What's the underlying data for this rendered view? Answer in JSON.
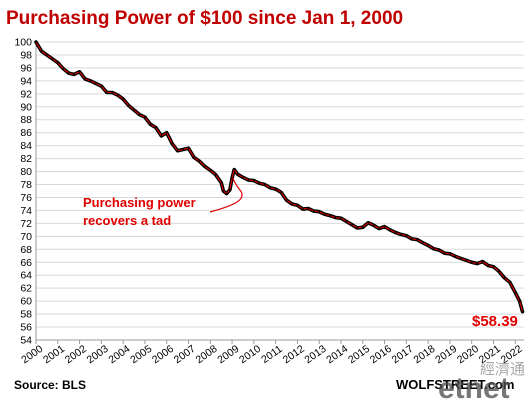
{
  "chart_data": {
    "type": "line",
    "title": "Purchasing  Power of $100 since Jan 1, 2000",
    "xlabel": "",
    "ylabel": "",
    "ylim": [
      54,
      100
    ],
    "y_ticks": [
      54,
      56,
      58,
      60,
      62,
      64,
      66,
      68,
      70,
      72,
      74,
      76,
      78,
      80,
      82,
      84,
      86,
      88,
      90,
      92,
      94,
      96,
      98,
      100
    ],
    "xlim": [
      2000,
      2022.4
    ],
    "x_ticks": [
      "2000",
      "2001",
      "2002",
      "2003",
      "2004",
      "2005",
      "2006",
      "2007",
      "2008",
      "2009",
      "2010",
      "2011",
      "2012",
      "2013",
      "2014",
      "2015",
      "2016",
      "2017",
      "2018",
      "2019",
      "2020",
      "2021",
      "2022"
    ],
    "grid": true,
    "series": [
      {
        "color": "#000000",
        "highlight_color": "#e00000",
        "x": [
          2000.0,
          2000.25,
          2000.5,
          2000.75,
          2001.0,
          2001.25,
          2001.5,
          2001.75,
          2002.0,
          2002.25,
          2002.5,
          2002.75,
          2003.0,
          2003.25,
          2003.5,
          2003.75,
          2004.0,
          2004.25,
          2004.5,
          2004.75,
          2005.0,
          2005.25,
          2005.5,
          2005.75,
          2006.0,
          2006.25,
          2006.5,
          2006.75,
          2007.0,
          2007.25,
          2007.5,
          2007.75,
          2008.0,
          2008.25,
          2008.5,
          2008.6,
          2008.75,
          2008.9,
          2009.0,
          2009.1,
          2009.25,
          2009.5,
          2009.75,
          2010.0,
          2010.25,
          2010.5,
          2010.75,
          2011.0,
          2011.25,
          2011.5,
          2011.75,
          2012.0,
          2012.25,
          2012.5,
          2012.75,
          2013.0,
          2013.25,
          2013.5,
          2013.75,
          2014.0,
          2014.25,
          2014.5,
          2014.75,
          2015.0,
          2015.25,
          2015.5,
          2015.75,
          2016.0,
          2016.25,
          2016.5,
          2016.75,
          2017.0,
          2017.25,
          2017.5,
          2017.75,
          2018.0,
          2018.25,
          2018.5,
          2018.75,
          2019.0,
          2019.25,
          2019.5,
          2019.75,
          2020.0,
          2020.25,
          2020.5,
          2020.75,
          2021.0,
          2021.25,
          2021.5,
          2021.75,
          2022.0,
          2022.2,
          2022.33
        ],
        "values": [
          100.0,
          98.6,
          98.0,
          97.4,
          96.8,
          95.9,
          95.2,
          95.0,
          95.4,
          94.3,
          94.0,
          93.6,
          93.2,
          92.2,
          92.2,
          91.8,
          91.2,
          90.2,
          89.5,
          88.8,
          88.4,
          87.3,
          86.8,
          85.5,
          86.0,
          84.3,
          83.2,
          83.4,
          83.6,
          82.2,
          81.6,
          80.8,
          80.2,
          79.5,
          78.3,
          77.0,
          76.6,
          77.2,
          79.0,
          80.3,
          79.6,
          79.1,
          78.7,
          78.6,
          78.2,
          78.0,
          77.5,
          77.3,
          76.8,
          75.6,
          75.0,
          74.8,
          74.2,
          74.3,
          73.9,
          73.8,
          73.4,
          73.2,
          72.9,
          72.8,
          72.3,
          71.8,
          71.3,
          71.4,
          72.1,
          71.7,
          71.2,
          71.5,
          71.0,
          70.6,
          70.3,
          70.1,
          69.6,
          69.5,
          69.0,
          68.6,
          68.1,
          67.9,
          67.4,
          67.3,
          66.9,
          66.6,
          66.3,
          66.0,
          65.8,
          66.1,
          65.5,
          65.3,
          64.6,
          63.6,
          62.9,
          61.3,
          60.0,
          58.39
        ]
      }
    ],
    "annotations": {
      "recovery_line1": "Purchasing power",
      "recovery_line2": "recovers a tad",
      "end_value_label": "$58.39"
    },
    "source": "Source: BLS",
    "brand": "WOLFSTREET.com"
  },
  "watermark": {
    "chinese": "經濟通",
    "english": "etnet"
  }
}
